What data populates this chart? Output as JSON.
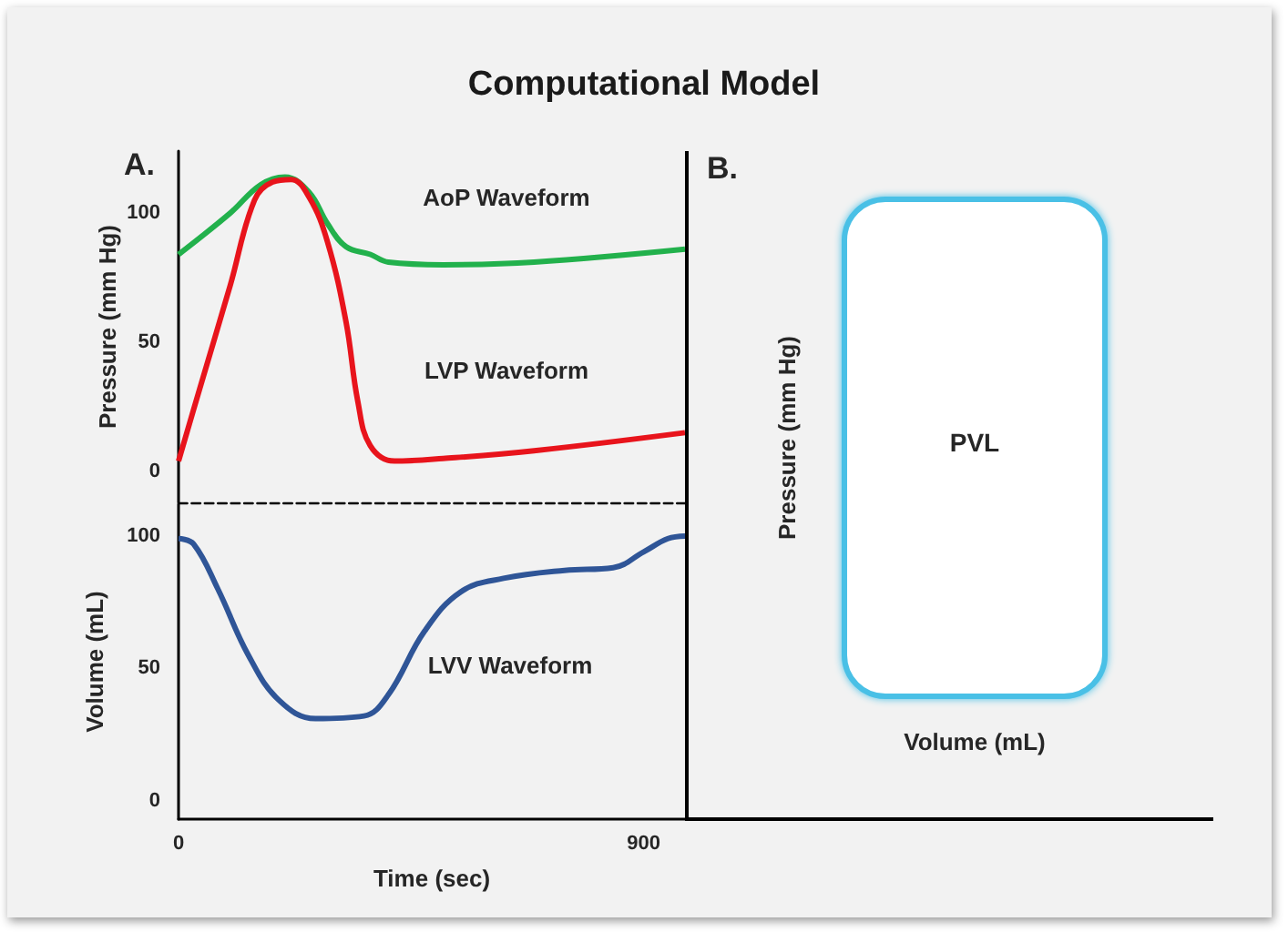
{
  "chart_data": [
    {
      "type": "line",
      "title": "Computational Model",
      "ylabel": "Pressure (mm Hg)",
      "annotations": [
        "A.",
        "AoP Waveform",
        "LVP Waveform"
      ],
      "xlim": [
        0,
        980
      ],
      "ylim": [
        -12,
        124
      ],
      "yticks": [
        0,
        50,
        100
      ],
      "tick_labels": "y",
      "series": [
        {
          "color": "#22b14c",
          "x": [
            0,
            100,
            159,
            206,
            253,
            288,
            324,
            371,
            406,
            512,
            688,
            980
          ],
          "values": [
            84,
            100,
            111,
            114,
            108,
            96,
            87,
            84,
            81,
            80,
            81,
            86
          ]
        },
        {
          "color": "#e8141c",
          "x": [
            0,
            41,
            100,
            147,
            182,
            218,
            253,
            288,
            324,
            347,
            371,
            418,
            512,
            688,
            980
          ],
          "values": [
            4,
            32,
            72,
            105,
            112,
            113,
            106,
            89,
            58,
            27,
            10,
            4,
            5,
            8,
            15
          ]
        }
      ]
    },
    {
      "type": "line",
      "xlabel": "Time (sec)",
      "ylabel": "Volume (mL)",
      "annotations": [
        "LVV Waveform"
      ],
      "xlim": [
        0,
        980
      ],
      "xticks": [
        0,
        900
      ],
      "ylim": [
        -7,
        112
      ],
      "yticks": [
        0,
        50,
        100
      ],
      "series": [
        {
          "color": "#2f5597",
          "x": [
            0,
            29,
            76,
            135,
            194,
            265,
            359,
            406,
            476,
            547,
            629,
            747,
            841,
            900,
            947,
            980
          ],
          "values": [
            99,
            97,
            80,
            55,
            38,
            31,
            32,
            40,
            64,
            79,
            84,
            87,
            88,
            94,
            99,
            100
          ]
        }
      ]
    },
    {
      "type": "other",
      "xlabel": "Volume (mL)",
      "ylabel": "Pressure (mm Hg)",
      "annotations": [
        "B.",
        "PVL"
      ]
    }
  ]
}
